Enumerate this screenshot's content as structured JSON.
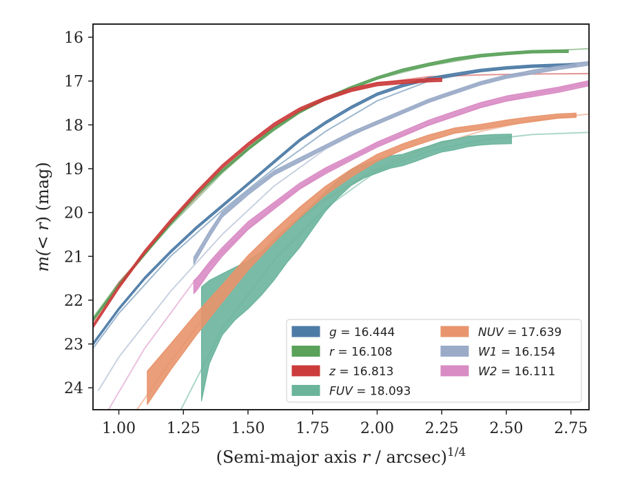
{
  "chart_data": {
    "type": "line",
    "xlabel_prefix": "(Semi-major axis ",
    "xlabel_var": "r",
    "xlabel_mid": " / arcsec)",
    "xlabel_exp": "1/4",
    "ylabel_pre": "m(",
    "ylabel_var": "< r",
    "ylabel_post": ") (mag)",
    "xlim": [
      0.9,
      2.82
    ],
    "ylim": [
      24.5,
      15.7
    ],
    "y_inverted": true,
    "x_ticks": [
      1.0,
      1.25,
      1.5,
      1.75,
      2.0,
      2.25,
      2.5,
      2.75
    ],
    "x_tick_labels": [
      "1.00",
      "1.25",
      "1.50",
      "1.75",
      "2.00",
      "2.25",
      "2.50",
      "2.75"
    ],
    "y_ticks": [
      16,
      17,
      18,
      19,
      20,
      21,
      22,
      23,
      24
    ],
    "y_tick_labels": [
      "16",
      "17",
      "18",
      "19",
      "20",
      "21",
      "22",
      "23",
      "24"
    ],
    "legend_position": "lower-right",
    "legend_columns": 2,
    "series": [
      {
        "key": "g",
        "band": "g",
        "total": "16.444",
        "color": "#4c7ba6",
        "model": {
          "x": [
            0.9,
            1.0,
            1.2,
            1.4,
            1.6,
            1.8,
            2.0,
            2.2,
            2.4,
            2.6,
            2.82
          ],
          "y": [
            23.1,
            22.3,
            21.0,
            19.95,
            19.0,
            18.15,
            17.45,
            17.0,
            16.78,
            16.66,
            16.57
          ]
        },
        "data": {
          "x": [
            0.9,
            1.0,
            1.1,
            1.2,
            1.3,
            1.4,
            1.5,
            1.6,
            1.7,
            1.8,
            1.9,
            2.0,
            2.1,
            2.2,
            2.3,
            2.4,
            2.5,
            2.6,
            2.7,
            2.77
          ],
          "y": [
            23.0,
            22.2,
            21.5,
            20.9,
            20.35,
            19.85,
            19.35,
            18.85,
            18.35,
            17.95,
            17.6,
            17.3,
            17.1,
            16.95,
            16.85,
            16.76,
            16.7,
            16.66,
            16.64,
            16.63
          ],
          "err": [
            0.03,
            0.03,
            0.03,
            0.03,
            0.03,
            0.03,
            0.03,
            0.03,
            0.03,
            0.03,
            0.03,
            0.03,
            0.03,
            0.03,
            0.03,
            0.03,
            0.03,
            0.03,
            0.03,
            0.03
          ]
        }
      },
      {
        "key": "r",
        "band": "r",
        "total": "16.108",
        "color": "#5aa15a",
        "model": {
          "x": [
            0.9,
            1.0,
            1.2,
            1.4,
            1.6,
            1.8,
            2.0,
            2.2,
            2.4,
            2.6,
            2.82
          ],
          "y": [
            22.4,
            21.6,
            20.3,
            19.1,
            18.05,
            17.4,
            16.95,
            16.65,
            16.45,
            16.33,
            16.26
          ]
        },
        "data": {
          "x": [
            0.9,
            1.0,
            1.1,
            1.2,
            1.3,
            1.4,
            1.5,
            1.6,
            1.7,
            1.8,
            1.9,
            2.0,
            2.1,
            2.2,
            2.3,
            2.4,
            2.5,
            2.6,
            2.7,
            2.74
          ],
          "y": [
            22.45,
            21.65,
            20.95,
            20.25,
            19.6,
            19.05,
            18.55,
            18.1,
            17.7,
            17.4,
            17.15,
            16.93,
            16.75,
            16.62,
            16.5,
            16.42,
            16.37,
            16.33,
            16.32,
            16.32
          ],
          "err": [
            0.03,
            0.03,
            0.03,
            0.03,
            0.03,
            0.03,
            0.03,
            0.03,
            0.03,
            0.03,
            0.03,
            0.03,
            0.03,
            0.03,
            0.03,
            0.03,
            0.03,
            0.03,
            0.03,
            0.03
          ]
        }
      },
      {
        "key": "z",
        "band": "z",
        "total": "16.813",
        "color": "#cc3b3b",
        "model": {
          "x": [
            0.9,
            1.0,
            1.2,
            1.4,
            1.6,
            1.8,
            2.0,
            2.2,
            2.4,
            2.6,
            2.82
          ],
          "y": [
            22.5,
            21.6,
            20.25,
            19.05,
            18.05,
            17.4,
            17.05,
            16.9,
            16.86,
            16.84,
            16.83
          ]
        },
        "data": {
          "x": [
            0.9,
            1.0,
            1.1,
            1.2,
            1.3,
            1.4,
            1.5,
            1.6,
            1.7,
            1.8,
            1.9,
            2.0,
            2.1,
            2.2,
            2.25
          ],
          "y": [
            22.6,
            21.7,
            20.9,
            20.2,
            19.55,
            18.95,
            18.45,
            18.0,
            17.65,
            17.4,
            17.2,
            17.07,
            17.02,
            16.98,
            16.97
          ],
          "err": [
            0.04,
            0.04,
            0.04,
            0.04,
            0.04,
            0.04,
            0.04,
            0.04,
            0.04,
            0.04,
            0.04,
            0.04,
            0.04,
            0.04,
            0.04
          ]
        }
      },
      {
        "key": "FUV",
        "band": "FUV",
        "total": "18.093",
        "color": "#6ab49c",
        "model": {
          "x": [
            1.24,
            1.4,
            1.6,
            1.8,
            2.0,
            2.2,
            2.4,
            2.6,
            2.82
          ],
          "y": [
            24.5,
            22.65,
            21.1,
            19.9,
            19.05,
            18.6,
            18.35,
            18.22,
            18.17
          ]
        },
        "data": {
          "x": [
            1.32,
            1.35,
            1.4,
            1.45,
            1.5,
            1.55,
            1.6,
            1.65,
            1.7,
            1.75,
            1.8,
            1.85,
            1.9,
            1.95,
            2.0,
            2.05,
            2.1,
            2.15,
            2.2,
            2.25,
            2.3,
            2.35,
            2.4,
            2.45,
            2.52
          ],
          "y": [
            23.0,
            22.5,
            22.1,
            21.85,
            21.65,
            21.4,
            21.1,
            20.75,
            20.45,
            20.1,
            19.75,
            19.45,
            19.2,
            19.05,
            18.95,
            18.85,
            18.8,
            18.7,
            18.6,
            18.5,
            18.45,
            18.38,
            18.35,
            18.33,
            18.32
          ],
          "err": [
            1.3,
            0.95,
            0.7,
            0.6,
            0.55,
            0.5,
            0.45,
            0.4,
            0.35,
            0.28,
            0.22,
            0.2,
            0.18,
            0.16,
            0.15,
            0.14,
            0.13,
            0.13,
            0.12,
            0.12,
            0.12,
            0.12,
            0.11,
            0.11,
            0.11
          ]
        }
      },
      {
        "key": "NUV",
        "band": "NUV",
        "total": "17.639",
        "color": "#e8946c",
        "model": {
          "x": [
            1.07,
            1.2,
            1.4,
            1.6,
            1.8,
            2.0,
            2.2,
            2.4,
            2.6,
            2.82
          ],
          "y": [
            24.5,
            23.4,
            21.85,
            20.6,
            19.7,
            19.0,
            18.5,
            18.15,
            17.9,
            17.75
          ]
        },
        "data": {
          "x": [
            1.11,
            1.2,
            1.3,
            1.4,
            1.5,
            1.6,
            1.7,
            1.8,
            1.9,
            2.0,
            2.1,
            2.2,
            2.3,
            2.4,
            2.5,
            2.6,
            2.7,
            2.77
          ],
          "y": [
            24.0,
            23.3,
            22.55,
            21.85,
            21.15,
            20.55,
            20.0,
            19.5,
            19.1,
            18.75,
            18.5,
            18.3,
            18.13,
            18.05,
            17.95,
            17.87,
            17.8,
            17.78
          ],
          "err": [
            0.38,
            0.3,
            0.25,
            0.2,
            0.17,
            0.14,
            0.12,
            0.1,
            0.09,
            0.08,
            0.07,
            0.07,
            0.06,
            0.06,
            0.06,
            0.06,
            0.05,
            0.05
          ]
        }
      },
      {
        "key": "W1",
        "band": "W1",
        "total": "16.154",
        "color": "#9aabc8",
        "model": {
          "x": [
            0.92,
            1.0,
            1.2,
            1.4,
            1.6,
            1.8,
            2.0,
            2.2,
            2.4,
            2.6,
            2.82
          ],
          "y": [
            24.07,
            23.3,
            21.8,
            20.5,
            19.4,
            18.55,
            17.95,
            17.45,
            17.05,
            16.75,
            16.55
          ]
        },
        "data": {
          "x": [
            1.29,
            1.35,
            1.4,
            1.5,
            1.6,
            1.7,
            1.8,
            1.9,
            2.0,
            2.1,
            2.2,
            2.3,
            2.4,
            2.5,
            2.6,
            2.7,
            2.82
          ],
          "y": [
            21.1,
            20.5,
            20.05,
            19.55,
            19.1,
            18.8,
            18.5,
            18.2,
            17.95,
            17.7,
            17.45,
            17.25,
            17.05,
            16.9,
            16.8,
            16.7,
            16.6
          ],
          "err": [
            0.08,
            0.07,
            0.06,
            0.05,
            0.05,
            0.05,
            0.04,
            0.04,
            0.04,
            0.04,
            0.04,
            0.04,
            0.04,
            0.04,
            0.04,
            0.04,
            0.04
          ]
        }
      },
      {
        "key": "W2",
        "band": "W2",
        "total": "16.111",
        "color": "#d98cc4",
        "model": {
          "x": [
            0.96,
            1.0,
            1.1,
            1.2,
            1.3,
            1.4,
            1.6,
            1.8,
            2.0,
            2.2,
            2.4,
            2.6,
            2.82
          ],
          "y": [
            24.5,
            24.1,
            23.1,
            22.3,
            21.5,
            20.9,
            19.85,
            19.05,
            18.45,
            18.0,
            17.6,
            17.3,
            17.05
          ]
        },
        "data": {
          "x": [
            1.29,
            1.3,
            1.35,
            1.4,
            1.5,
            1.6,
            1.7,
            1.8,
            1.9,
            2.0,
            2.1,
            2.2,
            2.3,
            2.4,
            2.5,
            2.6,
            2.7,
            2.82
          ],
          "y": [
            21.7,
            21.65,
            21.25,
            20.9,
            20.3,
            19.85,
            19.4,
            19.05,
            18.75,
            18.45,
            18.2,
            17.95,
            17.75,
            17.55,
            17.4,
            17.3,
            17.2,
            17.05
          ],
          "err": [
            0.15,
            0.14,
            0.12,
            0.1,
            0.09,
            0.08,
            0.07,
            0.07,
            0.06,
            0.06,
            0.06,
            0.06,
            0.06,
            0.06,
            0.06,
            0.06,
            0.06,
            0.06
          ]
        }
      }
    ]
  }
}
